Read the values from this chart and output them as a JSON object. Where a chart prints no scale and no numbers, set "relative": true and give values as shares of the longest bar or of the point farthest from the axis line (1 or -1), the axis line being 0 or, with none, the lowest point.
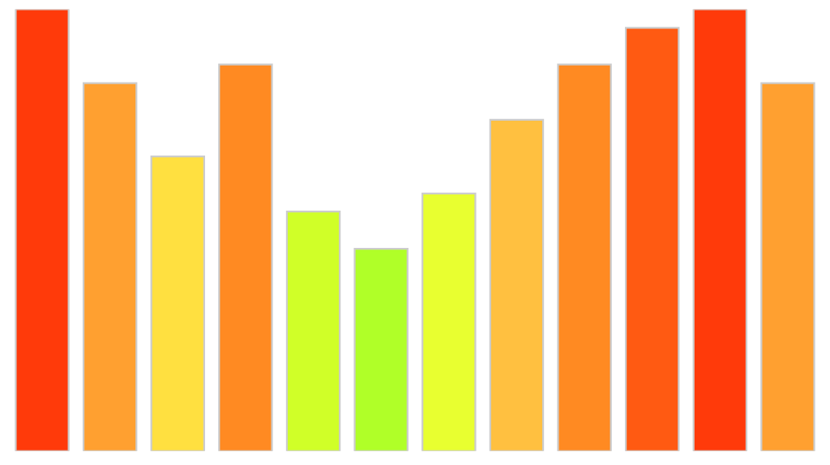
{
  "chart_data": {
    "type": "bar",
    "relative": true,
    "categories": [
      null,
      null,
      null,
      null,
      null,
      null,
      null,
      null,
      null,
      null,
      null,
      null
    ],
    "values": [
      1,
      0.833,
      0.667,
      0.875,
      0.542,
      0.458,
      0.583,
      0.75,
      0.875,
      0.958,
      1,
      0.833
    ],
    "colors": [
      "#ff3a0a",
      "#ffa030",
      "#ffe040",
      "#ff8a22",
      "#d0ff28",
      "#b0ff28",
      "#e8ff30",
      "#ffc040",
      "#ff8a22",
      "#ff5a12",
      "#ff3a0a",
      "#ffa030"
    ],
    "grid": false,
    "legend": false
  }
}
